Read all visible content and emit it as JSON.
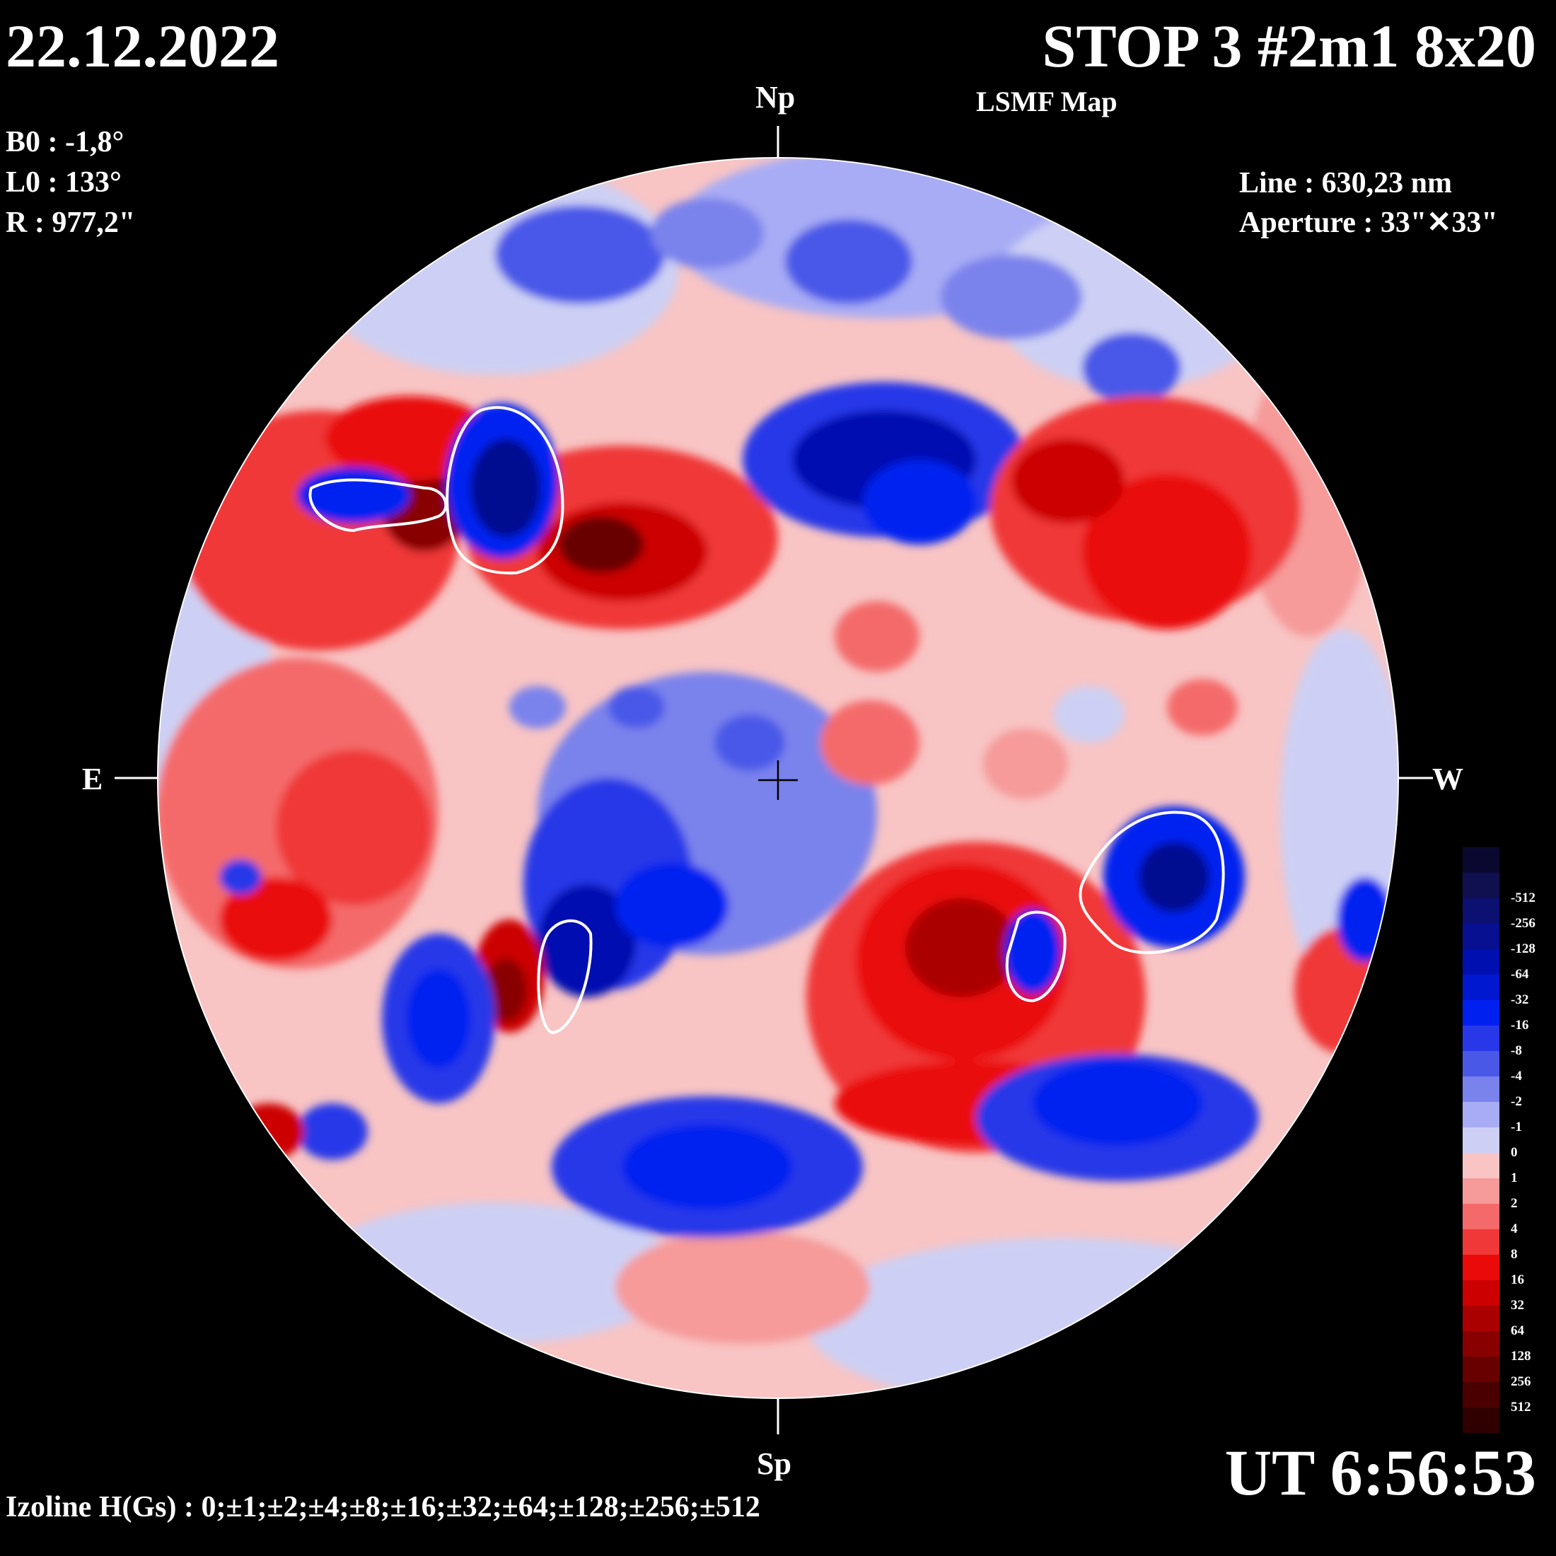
{
  "header": {
    "date": "22.12.2022",
    "title": "STOP 3 #2m1 8x20",
    "subtitle": "LSMF  Map"
  },
  "params": {
    "b0": "B0 : -1,8°",
    "l0": "L0 : 133°",
    "r": "R  : 977,2\""
  },
  "instrument": {
    "line": "Line :  630,23 nm",
    "aperture": "Aperture : 33\"✕33\""
  },
  "directions": {
    "north": "Np",
    "south": "Sp",
    "east": "E",
    "west": "W"
  },
  "time": "UT 6:56:53",
  "izoline": "Izoline H(Gs) : 0;±1;±2;±4;±8;±16;±32;±64;±128;±256;±512",
  "colorbar": {
    "levels": [
      {
        "label": "",
        "color": "#0b0830"
      },
      {
        "label": "-512",
        "color": "#101050"
      },
      {
        "label": "-256",
        "color": "#0c1070"
      },
      {
        "label": "-128",
        "color": "#061090"
      },
      {
        "label": "-64",
        "color": "#0010b0"
      },
      {
        "label": "-32",
        "color": "#0018d0"
      },
      {
        "label": "-16",
        "color": "#0020f0"
      },
      {
        "label": "-8",
        "color": "#2838e8"
      },
      {
        "label": "-4",
        "color": "#4a58e8"
      },
      {
        "label": "-2",
        "color": "#7a82ec"
      },
      {
        "label": "-1",
        "color": "#a8acf4"
      },
      {
        "label": "0",
        "color": "#cdd0f4"
      },
      {
        "label": "1",
        "color": "#f8c4c4"
      },
      {
        "label": "2",
        "color": "#f69a9a"
      },
      {
        "label": "4",
        "color": "#f46a6a"
      },
      {
        "label": "8",
        "color": "#f03838"
      },
      {
        "label": "16",
        "color": "#ea0a0a"
      },
      {
        "label": "32",
        "color": "#cc0000"
      },
      {
        "label": "64",
        "color": "#aa0000"
      },
      {
        "label": "128",
        "color": "#880000"
      },
      {
        "label": "256",
        "color": "#680000"
      },
      {
        "label": "512",
        "color": "#4a0000"
      },
      {
        "label": "",
        "color": "#300000"
      }
    ]
  }
}
